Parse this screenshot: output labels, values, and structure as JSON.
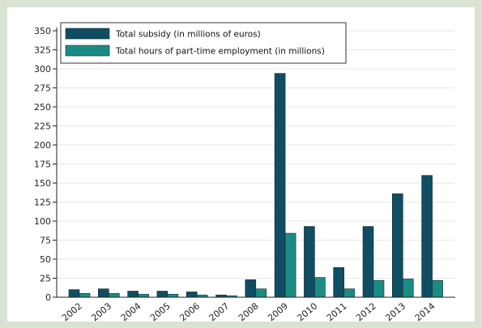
{
  "chart_data": {
    "type": "bar",
    "categories": [
      "2002",
      "2003",
      "2004",
      "2005",
      "2006",
      "2007",
      "2008",
      "2009",
      "2010",
      "2011",
      "2012",
      "2013",
      "2014"
    ],
    "series": [
      {
        "name": "Total subsidy (in millions of euros)",
        "color": "#0f4d63",
        "values": [
          10,
          11,
          8,
          8,
          7,
          3,
          23,
          294,
          93,
          39,
          93,
          136,
          160
        ]
      },
      {
        "name": "Total hours of part-time employment (in millions)",
        "color": "#1a8c84",
        "values": [
          5,
          5,
          4,
          4,
          3,
          2,
          11,
          84,
          26,
          11,
          22,
          24,
          22
        ]
      }
    ],
    "yticks": [
      0,
      25,
      50,
      75,
      100,
      125,
      150,
      175,
      200,
      225,
      250,
      275,
      300,
      325,
      350
    ],
    "ylim": [
      0,
      350
    ],
    "grid": "horizontal",
    "legend": "top-left"
  }
}
